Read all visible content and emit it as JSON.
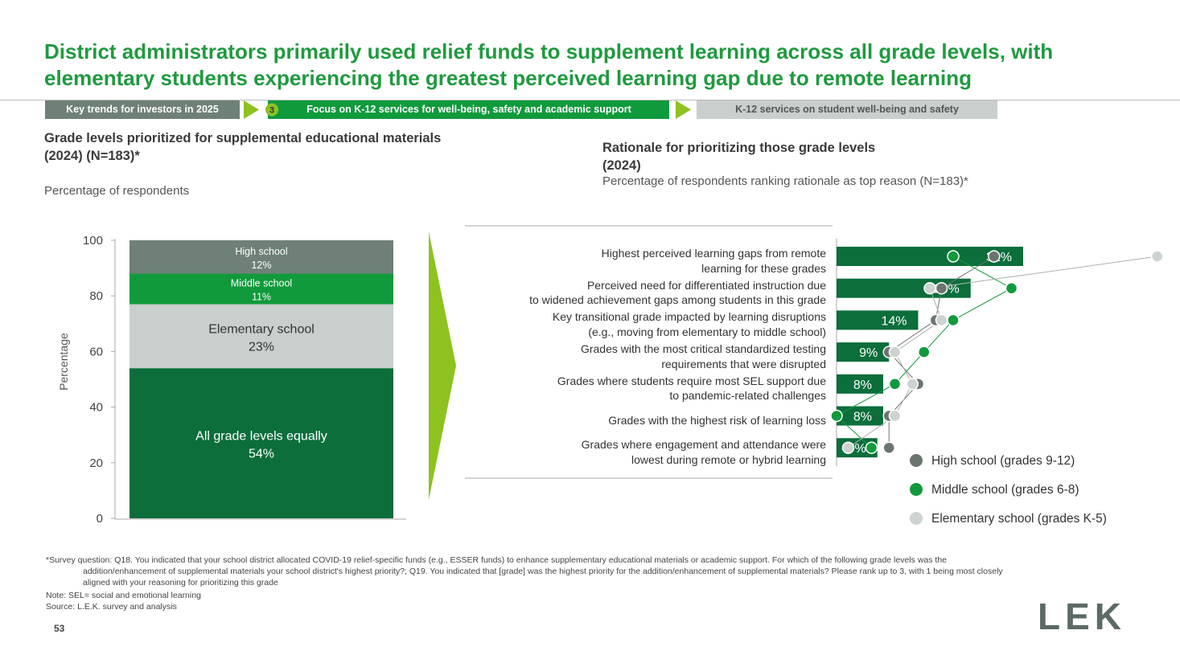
{
  "header": {
    "title": "District administrators primarily used relief funds to supplement learning across all grade levels, with elementary students experiencing the greatest perceived learning gap due to remote learning",
    "breadcrumbs": [
      "Key trends for investors in 2025",
      "3",
      "Focus on K-12 services for well-being, safety and academic support",
      "K-12 services on student well-being and safety"
    ]
  },
  "chart_data": [
    {
      "type": "stacked_bar",
      "title": "Grade levels prioritized for supplemental educational materials\n(2024) (N=183)*",
      "subtitle": "Percentage of respondents",
      "y_label": "Percentage",
      "ylim": [
        0,
        100
      ],
      "yticks": [
        0,
        20,
        40,
        60,
        80,
        100
      ],
      "series": [
        {
          "name": "All grade levels equally",
          "color": "#0b6e3b",
          "values": [
            54
          ],
          "value_labels": [
            "54%"
          ]
        },
        {
          "name": "Elementary school",
          "color": "#c8cfcc",
          "values": [
            23
          ],
          "value_labels": [
            "23%"
          ]
        },
        {
          "name": "Middle school",
          "color": "#109a3c",
          "values": [
            11
          ],
          "value_labels": [
            "11%"
          ]
        },
        {
          "name": "High school",
          "color": "#6e8077",
          "values": [
            12
          ],
          "value_labels": [
            "12%"
          ]
        }
      ]
    },
    {
      "type": "bar_dot",
      "title": "Rationale for prioritizing those grade levels\n(2024)",
      "subtitle": "Percentage of respondents ranking rationale as top reason (N=183)*",
      "categories": [
        "Highest perceived learning gaps from remote\nlearning for these grades",
        "Perceived need for differentiated instruction due\nto widened achievement gaps among students in this grade",
        "Key transitional grade impacted by learning disruptions\n(e.g., moving from elementary to middle school)",
        "Grades with the most critical standardized testing\nrequirements that were disrupted",
        "Grades where students require most SEL support due\nto pandemic-related challenges",
        "Grades with the highest risk of learning loss",
        "Grades where engagement and attendance were\nlowest during remote or hybrid learning"
      ],
      "values": [
        32,
        23,
        14,
        9,
        8,
        8,
        7
      ],
      "value_labels": [
        "32%",
        "23%",
        "14%",
        "9%",
        "8%",
        "8%",
        "7%"
      ],
      "color": "#0b6e3b",
      "series": [
        {
          "name": "High school (grades 9-12)",
          "color": "#6b7570",
          "values": [
            27,
            18,
            17,
            9,
            14,
            9,
            9
          ]
        },
        {
          "name": "Middle school (grades 6-8)",
          "color": "#109a3c",
          "values": [
            20,
            30,
            20,
            15,
            10,
            0,
            6
          ]
        },
        {
          "name": "Elementary school (grades K-5)",
          "color": "#cdd3d0",
          "values": [
            55,
            16,
            18,
            10,
            13,
            10,
            2
          ]
        }
      ]
    }
  ],
  "footnote": "*Survey question: Q18. You indicated that your school district allocated COVID-19 relief-specific funds (e.g., ESSER funds) to enhance supplementary educational materials or academic support. For which of the following grade levels was the addition/enhancement of supplemental materials your school district's highest priority?; Q19. You indicated that [grade] was the highest priority for the addition/enhancement of supplemental materials? Please rank up to 3, with 1 being most closely aligned with your reasoning for prioritizing this grade",
  "note": "Note: SEL= social and emotional learning",
  "source": "Source: L.E.K. survey and analysis",
  "page_number": "53",
  "logo": "LEK"
}
